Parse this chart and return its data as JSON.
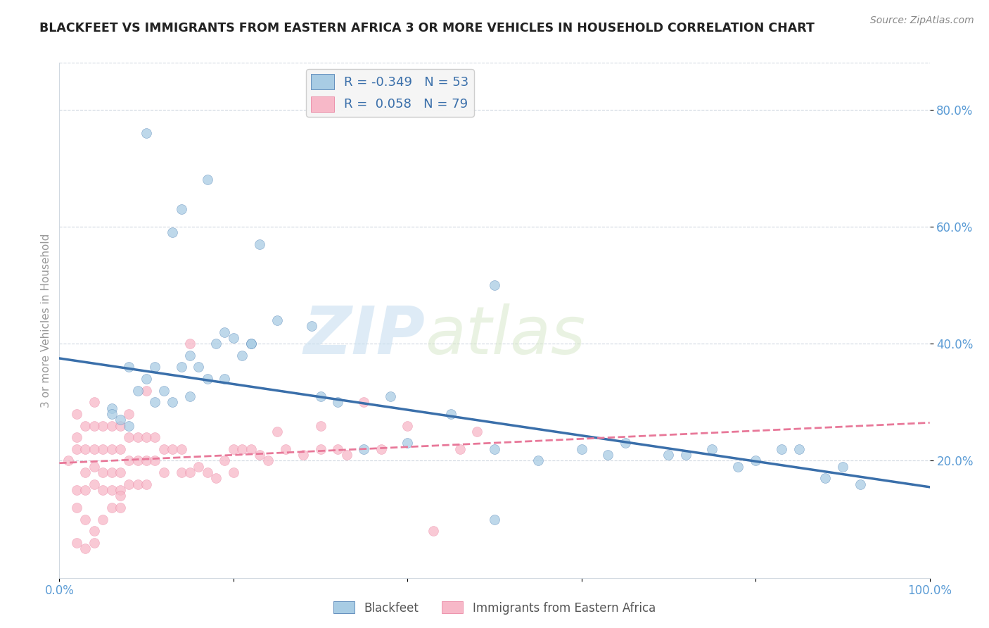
{
  "title": "BLACKFEET VS IMMIGRANTS FROM EASTERN AFRICA 3 OR MORE VEHICLES IN HOUSEHOLD CORRELATION CHART",
  "source": "Source: ZipAtlas.com",
  "ylabel": "3 or more Vehicles in Household",
  "xlim": [
    0.0,
    1.0
  ],
  "ylim": [
    0.0,
    0.88
  ],
  "yticks_right": [
    0.2,
    0.4,
    0.6,
    0.8
  ],
  "yticklabels_right": [
    "20.0%",
    "40.0%",
    "60.0%",
    "80.0%"
  ],
  "watermark_zip": "ZIP",
  "watermark_atlas": "atlas",
  "legend_r1": "R = -0.349",
  "legend_n1": "N = 53",
  "legend_r2": "R =  0.058",
  "legend_n2": "N = 79",
  "blue_color": "#a8cce4",
  "pink_color": "#f7b8c8",
  "blue_line_color": "#3a6faa",
  "pink_line_color": "#e87899",
  "background_color": "#ffffff",
  "axis_label_color": "#5a9bd5",
  "grid_color": "#d0d8e0",
  "blue_scatter_x": [
    0.1,
    0.17,
    0.14,
    0.23,
    0.13,
    0.08,
    0.06,
    0.11,
    0.15,
    0.19,
    0.22,
    0.25,
    0.29,
    0.32,
    0.38,
    0.45,
    0.5,
    0.6,
    0.65,
    0.7,
    0.75,
    0.8,
    0.85,
    0.9,
    0.92,
    0.06,
    0.07,
    0.08,
    0.09,
    0.1,
    0.11,
    0.12,
    0.13,
    0.14,
    0.15,
    0.16,
    0.17,
    0.18,
    0.19,
    0.2,
    0.21,
    0.22,
    0.3,
    0.35,
    0.4,
    0.5,
    0.55,
    0.63,
    0.72,
    0.78,
    0.83,
    0.88,
    0.5
  ],
  "blue_scatter_y": [
    0.76,
    0.68,
    0.63,
    0.57,
    0.59,
    0.36,
    0.29,
    0.3,
    0.31,
    0.34,
    0.4,
    0.44,
    0.43,
    0.3,
    0.31,
    0.28,
    0.5,
    0.22,
    0.23,
    0.21,
    0.22,
    0.2,
    0.22,
    0.19,
    0.16,
    0.28,
    0.27,
    0.26,
    0.32,
    0.34,
    0.36,
    0.32,
    0.3,
    0.36,
    0.38,
    0.36,
    0.34,
    0.4,
    0.42,
    0.41,
    0.38,
    0.4,
    0.31,
    0.22,
    0.23,
    0.22,
    0.2,
    0.21,
    0.21,
    0.19,
    0.22,
    0.17,
    0.1
  ],
  "pink_scatter_x": [
    0.01,
    0.02,
    0.02,
    0.02,
    0.02,
    0.02,
    0.03,
    0.03,
    0.03,
    0.03,
    0.03,
    0.04,
    0.04,
    0.04,
    0.04,
    0.04,
    0.04,
    0.05,
    0.05,
    0.05,
    0.05,
    0.05,
    0.06,
    0.06,
    0.06,
    0.06,
    0.06,
    0.07,
    0.07,
    0.07,
    0.07,
    0.07,
    0.08,
    0.08,
    0.08,
    0.08,
    0.09,
    0.09,
    0.09,
    0.1,
    0.1,
    0.1,
    0.11,
    0.11,
    0.12,
    0.12,
    0.13,
    0.14,
    0.14,
    0.15,
    0.16,
    0.17,
    0.18,
    0.19,
    0.2,
    0.2,
    0.21,
    0.22,
    0.23,
    0.24,
    0.25,
    0.26,
    0.28,
    0.3,
    0.3,
    0.32,
    0.33,
    0.35,
    0.37,
    0.4,
    0.43,
    0.46,
    0.02,
    0.03,
    0.04,
    0.07,
    0.1,
    0.15,
    0.48
  ],
  "pink_scatter_y": [
    0.2,
    0.28,
    0.24,
    0.22,
    0.15,
    0.12,
    0.26,
    0.22,
    0.18,
    0.15,
    0.1,
    0.3,
    0.26,
    0.22,
    0.19,
    0.16,
    0.08,
    0.26,
    0.22,
    0.18,
    0.15,
    0.1,
    0.26,
    0.22,
    0.18,
    0.15,
    0.12,
    0.26,
    0.22,
    0.18,
    0.15,
    0.12,
    0.28,
    0.24,
    0.2,
    0.16,
    0.24,
    0.2,
    0.16,
    0.24,
    0.2,
    0.16,
    0.24,
    0.2,
    0.22,
    0.18,
    0.22,
    0.22,
    0.18,
    0.18,
    0.19,
    0.18,
    0.17,
    0.2,
    0.22,
    0.18,
    0.22,
    0.22,
    0.21,
    0.2,
    0.25,
    0.22,
    0.21,
    0.26,
    0.22,
    0.22,
    0.21,
    0.3,
    0.22,
    0.26,
    0.08,
    0.22,
    0.06,
    0.05,
    0.06,
    0.14,
    0.32,
    0.4,
    0.25
  ],
  "blue_line_x0": 0.0,
  "blue_line_y0": 0.375,
  "blue_line_x1": 1.0,
  "blue_line_y1": 0.155,
  "pink_line_x0": 0.0,
  "pink_line_y0": 0.196,
  "pink_line_x1": 1.0,
  "pink_line_y1": 0.265
}
